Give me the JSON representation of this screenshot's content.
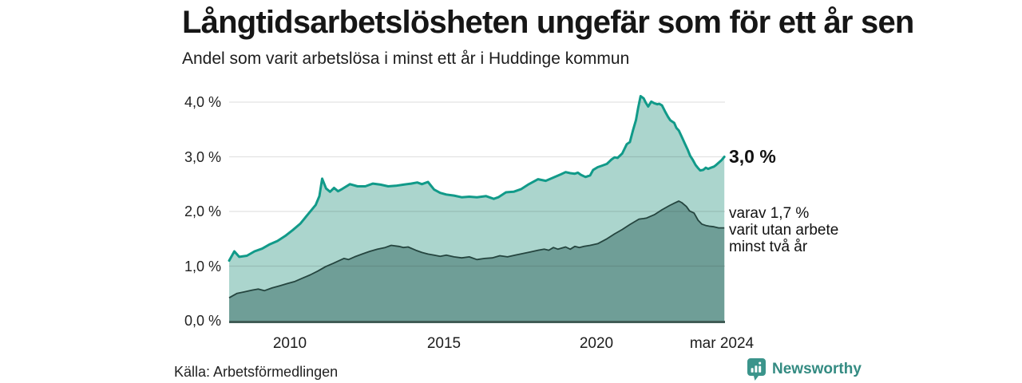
{
  "header": {
    "title": "Långtidsarbetslösheten ungefär som för ett år sen",
    "subtitle": "Andel som varit arbetslösa i minst ett år i Huddinge kommun"
  },
  "annotations": {
    "latest_total": "3,0 %",
    "latest_two_year_lines": [
      "varav 1,7 %",
      "varit utan arbete",
      "minst två år"
    ]
  },
  "footer": {
    "source": "Källa: Arbetsförmedlingen",
    "brand": "Newsworthy"
  },
  "colors": {
    "grid": "#dfdfdf",
    "axis": "#405c56",
    "total_line": "#119a89",
    "total_fill": "#abd5cd",
    "two_year_line": "#25453f",
    "two_year_fill": "#6f9e97",
    "brand_teal": "#348b82"
  },
  "chart_data": {
    "type": "area",
    "title": "Långtidsarbetslösheten ungefär som för ett år sen",
    "subtitle": "Andel som varit arbetslösa i minst ett år i Huddinge kommun",
    "xlabel": "",
    "ylabel": "",
    "x_unit": "decimal year",
    "y_unit": "percent",
    "xlim": [
      2008.0,
      2024.21
    ],
    "ylim": [
      0,
      4.3
    ],
    "grid": "horizontal",
    "x_ticks": [
      {
        "label": "2010",
        "x": 2010
      },
      {
        "label": "2015",
        "x": 2015
      },
      {
        "label": "2020",
        "x": 2020
      },
      {
        "label": "mar 2024",
        "x": 2024.19
      }
    ],
    "y_ticks": [
      {
        "label": "0,0 %",
        "y": 0
      },
      {
        "label": "1,0 %",
        "y": 1
      },
      {
        "label": "2,0 %",
        "y": 2
      },
      {
        "label": "3,0 %",
        "y": 3
      },
      {
        "label": "4,0 %",
        "y": 4
      }
    ],
    "series": [
      {
        "name": "Andel som varit arbetslösa i minst ett år",
        "latest_value_label": "3,0 %",
        "points": [
          [
            2008.0,
            1.1
          ],
          [
            2008.17,
            1.27
          ],
          [
            2008.33,
            1.17
          ],
          [
            2008.58,
            1.19
          ],
          [
            2008.83,
            1.27
          ],
          [
            2009.08,
            1.32
          ],
          [
            2009.33,
            1.4
          ],
          [
            2009.58,
            1.46
          ],
          [
            2009.83,
            1.55
          ],
          [
            2010.08,
            1.66
          ],
          [
            2010.33,
            1.78
          ],
          [
            2010.58,
            1.95
          ],
          [
            2010.83,
            2.12
          ],
          [
            2010.95,
            2.28
          ],
          [
            2011.04,
            2.6
          ],
          [
            2011.17,
            2.42
          ],
          [
            2011.3,
            2.36
          ],
          [
            2011.43,
            2.43
          ],
          [
            2011.56,
            2.37
          ],
          [
            2011.69,
            2.41
          ],
          [
            2011.95,
            2.5
          ],
          [
            2012.2,
            2.46
          ],
          [
            2012.45,
            2.46
          ],
          [
            2012.7,
            2.51
          ],
          [
            2012.95,
            2.49
          ],
          [
            2013.2,
            2.46
          ],
          [
            2013.45,
            2.47
          ],
          [
            2013.7,
            2.49
          ],
          [
            2013.95,
            2.51
          ],
          [
            2014.15,
            2.53
          ],
          [
            2014.3,
            2.5
          ],
          [
            2014.5,
            2.54
          ],
          [
            2014.7,
            2.4
          ],
          [
            2014.9,
            2.34
          ],
          [
            2015.1,
            2.31
          ],
          [
            2015.35,
            2.29
          ],
          [
            2015.6,
            2.26
          ],
          [
            2015.85,
            2.27
          ],
          [
            2016.1,
            2.26
          ],
          [
            2016.4,
            2.28
          ],
          [
            2016.65,
            2.23
          ],
          [
            2016.8,
            2.26
          ],
          [
            2017.05,
            2.35
          ],
          [
            2017.3,
            2.36
          ],
          [
            2017.55,
            2.41
          ],
          [
            2017.8,
            2.5
          ],
          [
            2018.1,
            2.59
          ],
          [
            2018.35,
            2.56
          ],
          [
            2018.6,
            2.62
          ],
          [
            2018.85,
            2.68
          ],
          [
            2019.0,
            2.72
          ],
          [
            2019.15,
            2.7
          ],
          [
            2019.3,
            2.69
          ],
          [
            2019.4,
            2.71
          ],
          [
            2019.5,
            2.67
          ],
          [
            2019.65,
            2.63
          ],
          [
            2019.8,
            2.66
          ],
          [
            2019.9,
            2.76
          ],
          [
            2020.05,
            2.81
          ],
          [
            2020.2,
            2.84
          ],
          [
            2020.35,
            2.87
          ],
          [
            2020.5,
            2.95
          ],
          [
            2020.6,
            2.99
          ],
          [
            2020.7,
            2.98
          ],
          [
            2020.85,
            3.06
          ],
          [
            2021.0,
            3.23
          ],
          [
            2021.1,
            3.27
          ],
          [
            2021.2,
            3.48
          ],
          [
            2021.3,
            3.67
          ],
          [
            2021.37,
            3.89
          ],
          [
            2021.45,
            4.11
          ],
          [
            2021.55,
            4.07
          ],
          [
            2021.62,
            3.99
          ],
          [
            2021.7,
            3.92
          ],
          [
            2021.8,
            4.01
          ],
          [
            2021.9,
            3.98
          ],
          [
            2022.0,
            3.96
          ],
          [
            2022.06,
            3.97
          ],
          [
            2022.15,
            3.94
          ],
          [
            2022.25,
            3.83
          ],
          [
            2022.35,
            3.73
          ],
          [
            2022.42,
            3.67
          ],
          [
            2022.5,
            3.64
          ],
          [
            2022.55,
            3.62
          ],
          [
            2022.62,
            3.53
          ],
          [
            2022.7,
            3.48
          ],
          [
            2022.8,
            3.36
          ],
          [
            2022.9,
            3.24
          ],
          [
            2023.0,
            3.12
          ],
          [
            2023.07,
            3.02
          ],
          [
            2023.15,
            2.95
          ],
          [
            2023.25,
            2.85
          ],
          [
            2023.32,
            2.8
          ],
          [
            2023.4,
            2.75
          ],
          [
            2023.5,
            2.76
          ],
          [
            2023.58,
            2.8
          ],
          [
            2023.66,
            2.78
          ],
          [
            2023.75,
            2.8
          ],
          [
            2023.85,
            2.82
          ],
          [
            2023.92,
            2.85
          ],
          [
            2024.0,
            2.89
          ],
          [
            2024.1,
            2.94
          ],
          [
            2024.19,
            3.0
          ]
        ]
      },
      {
        "name": "varav utan arbete minst två år",
        "latest_value_label": "1,7 %",
        "points": [
          [
            2008.0,
            0.42
          ],
          [
            2008.25,
            0.5
          ],
          [
            2008.5,
            0.53
          ],
          [
            2008.75,
            0.56
          ],
          [
            2008.95,
            0.58
          ],
          [
            2009.15,
            0.55
          ],
          [
            2009.4,
            0.6
          ],
          [
            2009.65,
            0.64
          ],
          [
            2009.9,
            0.68
          ],
          [
            2010.15,
            0.72
          ],
          [
            2010.4,
            0.78
          ],
          [
            2010.65,
            0.84
          ],
          [
            2010.9,
            0.91
          ],
          [
            2011.15,
            0.99
          ],
          [
            2011.4,
            1.05
          ],
          [
            2011.6,
            1.1
          ],
          [
            2011.75,
            1.14
          ],
          [
            2011.9,
            1.12
          ],
          [
            2012.1,
            1.17
          ],
          [
            2012.35,
            1.22
          ],
          [
            2012.6,
            1.27
          ],
          [
            2012.85,
            1.31
          ],
          [
            2013.1,
            1.34
          ],
          [
            2013.3,
            1.38
          ],
          [
            2013.55,
            1.36
          ],
          [
            2013.7,
            1.34
          ],
          [
            2013.85,
            1.35
          ],
          [
            2014.1,
            1.29
          ],
          [
            2014.3,
            1.25
          ],
          [
            2014.5,
            1.22
          ],
          [
            2014.7,
            1.2
          ],
          [
            2014.9,
            1.18
          ],
          [
            2015.1,
            1.2
          ],
          [
            2015.35,
            1.17
          ],
          [
            2015.6,
            1.15
          ],
          [
            2015.85,
            1.17
          ],
          [
            2016.1,
            1.12
          ],
          [
            2016.35,
            1.14
          ],
          [
            2016.6,
            1.15
          ],
          [
            2016.85,
            1.19
          ],
          [
            2017.1,
            1.17
          ],
          [
            2017.35,
            1.2
          ],
          [
            2017.6,
            1.23
          ],
          [
            2017.85,
            1.26
          ],
          [
            2018.1,
            1.29
          ],
          [
            2018.3,
            1.31
          ],
          [
            2018.45,
            1.29
          ],
          [
            2018.6,
            1.34
          ],
          [
            2018.75,
            1.31
          ],
          [
            2019.0,
            1.35
          ],
          [
            2019.15,
            1.31
          ],
          [
            2019.3,
            1.36
          ],
          [
            2019.45,
            1.34
          ],
          [
            2019.6,
            1.36
          ],
          [
            2019.8,
            1.38
          ],
          [
            2020.05,
            1.41
          ],
          [
            2020.35,
            1.5
          ],
          [
            2020.6,
            1.59
          ],
          [
            2020.85,
            1.67
          ],
          [
            2021.1,
            1.76
          ],
          [
            2021.4,
            1.86
          ],
          [
            2021.55,
            1.87
          ],
          [
            2021.65,
            1.88
          ],
          [
            2021.9,
            1.94
          ],
          [
            2022.15,
            2.03
          ],
          [
            2022.4,
            2.11
          ],
          [
            2022.55,
            2.15
          ],
          [
            2022.7,
            2.19
          ],
          [
            2022.8,
            2.16
          ],
          [
            2022.95,
            2.09
          ],
          [
            2023.05,
            2.01
          ],
          [
            2023.2,
            1.97
          ],
          [
            2023.33,
            1.84
          ],
          [
            2023.45,
            1.77
          ],
          [
            2023.6,
            1.74
          ],
          [
            2023.7,
            1.73
          ],
          [
            2023.85,
            1.72
          ],
          [
            2024.0,
            1.7
          ],
          [
            2024.19,
            1.7
          ]
        ]
      }
    ]
  }
}
